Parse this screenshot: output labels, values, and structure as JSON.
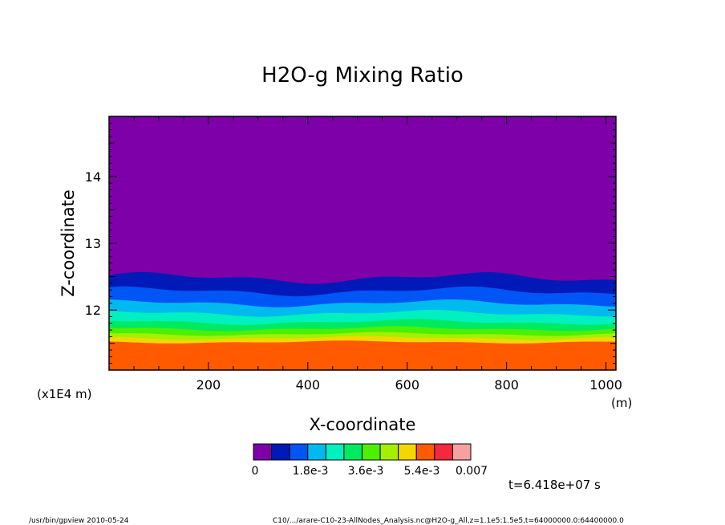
{
  "chart_data": {
    "type": "heatmap",
    "title": "H2O-g Mixing Ratio",
    "xlabel": "X-coordinate",
    "ylabel": "Z-coordinate",
    "x_unit": "(m)",
    "y_unit": "(x1E4 m)",
    "xlim": [
      0,
      1020
    ],
    "ylim": [
      11.1,
      14.9
    ],
    "x_ticks": [
      200,
      400,
      600,
      800,
      1000
    ],
    "y_ticks": [
      12,
      13,
      14
    ],
    "colorbar": {
      "colors": [
        "#7d00a8",
        "#0019b8",
        "#0055f5",
        "#00b9ef",
        "#00f0c0",
        "#00ea60",
        "#4cf000",
        "#a4f000",
        "#f5d600",
        "#ff5a00",
        "#f5283c",
        "#f7a0a0"
      ],
      "tick_labels": [
        "0",
        "1.8e-3",
        "3.6e-3",
        "5.4e-3",
        "0.007"
      ]
    },
    "time_label": "t=6.418e+07 s",
    "band_boundaries_z": [
      12.48,
      12.28,
      12.1,
      11.95,
      11.82,
      11.72,
      11.64,
      11.58,
      11.52
    ]
  },
  "footer": {
    "left": "/usr/bin/gpview  2010-05-24",
    "right": "C10/.../arare-C10-23-AllNodes_Analysis.nc@H2O-g_All,z=1.1e5:1.5e5,t=64000000.0:64400000.0"
  }
}
